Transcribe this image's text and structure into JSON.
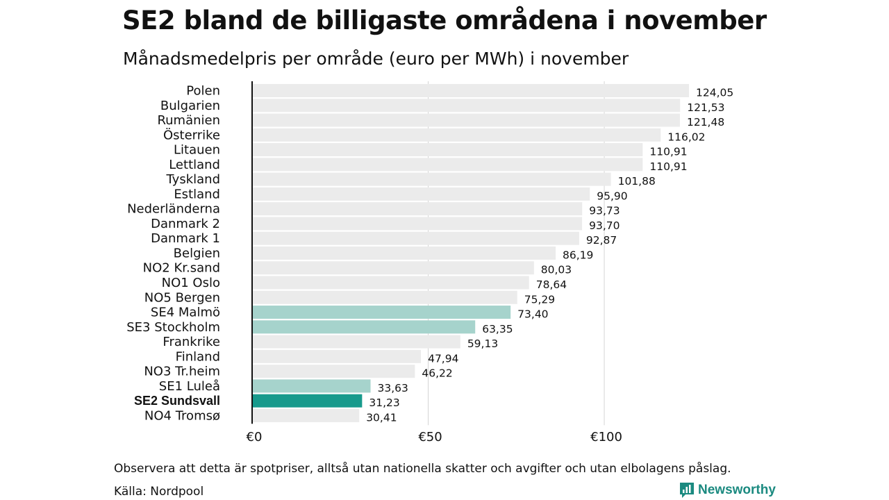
{
  "title": "SE2 bland de billigaste områdena i november",
  "subtitle": "Månadsmedelpris per område (euro per MWh) i november",
  "note": "Observera att detta är spotpriser, alltså utan nationella skatter och avgifter och utan elbolagens påslag.",
  "source": "Källa: Nordpool",
  "brand": "Newsworthy",
  "colors": {
    "default": "#ebebeb",
    "swedish": "#a6d3cc",
    "highlight": "#179a8c",
    "brand": "#1b8a80"
  },
  "chart_data": {
    "type": "bar",
    "orientation": "horizontal",
    "categories": [
      "Polen",
      "Bulgarien",
      "Rumänien",
      "Österrike",
      "Litauen",
      "Lettland",
      "Tyskland",
      "Estland",
      "Nederländerna",
      "Danmark  2",
      "Danmark  1",
      "Belgien",
      "NO2 Kr.sand",
      "NO1 Oslo",
      "NO5 Bergen",
      "SE4  Malmö",
      "SE3  Stockholm",
      "Frankrike",
      "Finland",
      "NO3 Tr.heim",
      "SE1  Luleå",
      "SE2 Sundsvall",
      "NO4 Tromsø"
    ],
    "values": [
      124.05,
      121.53,
      121.48,
      116.02,
      110.91,
      110.91,
      101.88,
      95.9,
      93.73,
      93.7,
      92.87,
      86.19,
      80.03,
      78.64,
      75.29,
      73.4,
      63.35,
      59.13,
      47.94,
      46.22,
      33.63,
      31.23,
      30.41
    ],
    "value_labels": [
      "124,05",
      "121,53",
      "121,48",
      "116,02",
      "110,91",
      "110,91",
      "101,88",
      "95,90",
      "93,73",
      "93,70",
      "92,87",
      "86,19",
      "80,03",
      "78,64",
      "75,29",
      "73,40",
      "63,35",
      "59,13",
      "47,94",
      "46,22",
      "33,63",
      "31,23",
      "30,41"
    ],
    "bar_category": [
      "default",
      "default",
      "default",
      "default",
      "default",
      "default",
      "default",
      "default",
      "default",
      "default",
      "default",
      "default",
      "default",
      "default",
      "default",
      "swedish",
      "swedish",
      "default",
      "default",
      "default",
      "swedish",
      "highlight",
      "default"
    ],
    "highlight": "SE2 Sundsvall",
    "x_ticks": [
      0,
      50,
      100
    ],
    "x_tick_labels": [
      "€0",
      "€50",
      "€100"
    ],
    "xlim": [
      0,
      124.05
    ],
    "xlabel": "",
    "ylabel": "",
    "grid": true
  }
}
